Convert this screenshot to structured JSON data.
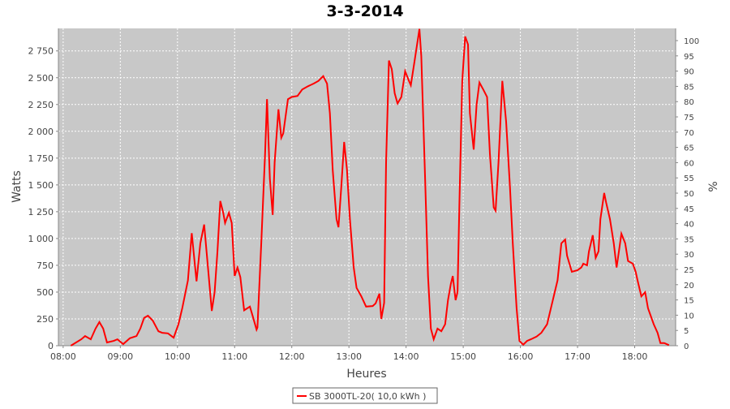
{
  "chart_data": {
    "type": "line",
    "title": "3-3-2014",
    "x_label": "Heures",
    "y_label": "Watts",
    "y2_label": "%",
    "xlim": [
      "07:55",
      "18:43"
    ],
    "xticks": [
      "08:00",
      "09:00",
      "10:00",
      "11:00",
      "12:00",
      "13:00",
      "14:00",
      "15:00",
      "16:00",
      "17:00",
      "18:00"
    ],
    "ylim": [
      0,
      2960
    ],
    "yticks": [
      0,
      250,
      500,
      750,
      {
        "value": 1000,
        "label": "1 000"
      },
      {
        "value": 1250,
        "label": "1 250"
      },
      {
        "value": 1500,
        "label": "1 500"
      },
      {
        "value": 1750,
        "label": "1 750"
      },
      {
        "value": 2000,
        "label": "2 000"
      },
      {
        "value": 2250,
        "label": "2 250"
      },
      {
        "value": 2500,
        "label": "2 500"
      },
      {
        "value": 2750,
        "label": "2 750"
      }
    ],
    "y2lim": [
      0,
      104
    ],
    "y2ticks": [
      0,
      5,
      10,
      15,
      20,
      25,
      30,
      35,
      40,
      45,
      50,
      55,
      60,
      65,
      70,
      75,
      80,
      85,
      90,
      95,
      100
    ],
    "grid": true,
    "legend": "bottom",
    "x": [
      "08:08",
      "08:19",
      "08:23",
      "08:29",
      "08:34",
      "08:38",
      "08:42",
      "08:46",
      "08:53",
      "08:57",
      "09:03",
      "09:10",
      "09:17",
      "09:21",
      "09:25",
      "09:29",
      "09:34",
      "09:40",
      "09:44",
      "09:50",
      "09:56",
      "10:01",
      "10:05",
      "10:11",
      "10:15",
      "10:20",
      "10:24",
      "10:28",
      "10:32",
      "10:36",
      "10:39",
      "10:42",
      "10:45",
      "10:48",
      "10:50",
      "10:54",
      "10:57",
      "11:00",
      "11:03",
      "11:06",
      "11:10",
      "11:16",
      "11:19",
      "11:23",
      "11:24",
      "11:28",
      "11:32",
      "11:34",
      "11:37",
      "11:40",
      "11:42",
      "11:46",
      "11:49",
      "11:51",
      "11:56",
      "12:00",
      "12:06",
      "12:11",
      "12:17",
      "12:23",
      "12:28",
      "12:33",
      "12:37",
      "12:40",
      "12:43",
      "12:47",
      "12:49",
      "12:52",
      "12:55",
      "12:58",
      "13:01",
      "13:05",
      "13:08",
      "13:13",
      "13:18",
      "13:25",
      "13:28",
      "13:32",
      "13:34",
      "13:37",
      "13:39",
      "13:42",
      "13:45",
      "13:48",
      "13:51",
      "13:55",
      "13:59",
      "14:03",
      "14:05",
      "14:09",
      "14:14",
      "14:16",
      "14:20",
      "14:23",
      "14:26",
      "14:29",
      "14:33",
      "14:37",
      "14:41",
      "14:44",
      "14:47",
      "14:49",
      "14:52",
      "14:54",
      "14:56",
      "14:59",
      "15:02",
      "15:05",
      "15:07",
      "15:11",
      "15:14",
      "15:17",
      "15:21",
      "15:25",
      "15:28",
      "15:32",
      "15:34",
      "15:37",
      "15:41",
      "15:45",
      "15:49",
      "15:52",
      "15:56",
      "15:59",
      "16:03",
      "16:07",
      "16:11",
      "16:17",
      "16:22",
      "16:28",
      "16:32",
      "16:39",
      "16:43",
      "16:47",
      "16:49",
      "16:54",
      "17:00",
      "17:04",
      "17:06",
      "17:10",
      "17:12",
      "17:16",
      "17:19",
      "17:22",
      "17:24",
      "17:28",
      "17:30",
      "17:34",
      "17:38",
      "17:41",
      "17:44",
      "17:46",
      "17:50",
      "17:53",
      "17:58",
      "18:01",
      "18:03",
      "18:07",
      "18:11",
      "18:14",
      "18:20",
      "18:24",
      "18:27",
      "18:31",
      "18:36"
    ],
    "series": [
      {
        "name": "SB 3000TL-20( 10,0 kWh )",
        "color": "#ff0000",
        "values": [
          0,
          60,
          90,
          60,
          160,
          220,
          160,
          30,
          45,
          60,
          15,
          70,
          90,
          160,
          260,
          280,
          235,
          135,
          120,
          115,
          75,
          200,
          350,
          610,
          1050,
          600,
          955,
          1130,
          730,
          325,
          500,
          880,
          1350,
          1240,
          1145,
          1240,
          1145,
          650,
          730,
          640,
          330,
          365,
          275,
          150,
          170,
          955,
          1790,
          2300,
          1560,
          1220,
          1710,
          2205,
          1940,
          1980,
          2300,
          2320,
          2330,
          2390,
          2420,
          2445,
          2470,
          2515,
          2445,
          2170,
          1640,
          1180,
          1105,
          1485,
          1900,
          1640,
          1180,
          730,
          540,
          460,
          365,
          370,
          395,
          485,
          250,
          400,
          1710,
          2660,
          2580,
          2355,
          2260,
          2320,
          2560,
          2470,
          2430,
          2660,
          2955,
          2700,
          1560,
          650,
          160,
          60,
          160,
          135,
          200,
          425,
          575,
          650,
          425,
          500,
          1330,
          2470,
          2885,
          2810,
          2170,
          1830,
          2250,
          2455,
          2390,
          2320,
          1790,
          1290,
          1260,
          1710,
          2470,
          2090,
          1485,
          955,
          350,
          45,
          10,
          45,
          60,
          85,
          120,
          200,
          350,
          610,
          955,
          990,
          840,
          690,
          705,
          730,
          765,
          750,
          880,
          1030,
          820,
          880,
          1180,
          1425,
          1335,
          1180,
          955,
          730,
          915,
          1045,
          955,
          790,
          765,
          690,
          610,
          460,
          500,
          350,
          200,
          120,
          25,
          25,
          5
        ]
      }
    ]
  }
}
